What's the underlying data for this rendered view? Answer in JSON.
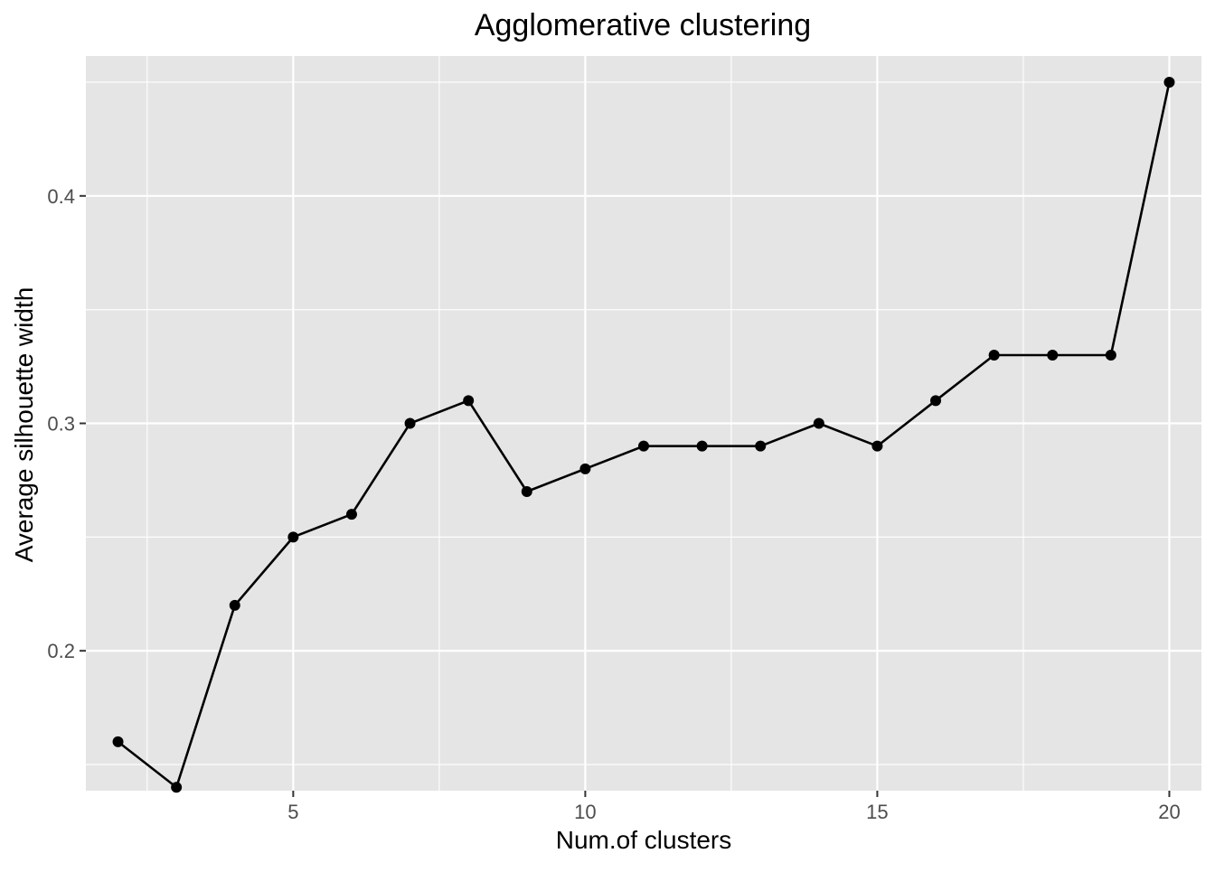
{
  "chart_data": {
    "type": "line",
    "title": "Agglomerative clustering",
    "xlabel": "Num.of clusters",
    "ylabel": "Average silhouette width",
    "xlim": [
      1.45,
      20.55
    ],
    "ylim": [
      0.1385,
      0.4615
    ],
    "x_ticks": [
      5,
      10,
      15,
      20
    ],
    "x_tick_labels": [
      "5",
      "10",
      "15",
      "20"
    ],
    "x_minor_ticks": [
      2.5,
      7.5,
      12.5,
      17.5
    ],
    "y_ticks": [
      0.2,
      0.3,
      0.4
    ],
    "y_tick_labels": [
      "0.2",
      "0.3",
      "0.4"
    ],
    "y_minor_ticks": [
      0.15,
      0.25,
      0.35,
      0.45
    ],
    "grid": true,
    "panel_background": "#e5e5e5",
    "series_color": "#000000",
    "x": [
      2,
      3,
      4,
      5,
      6,
      7,
      8,
      9,
      10,
      11,
      12,
      13,
      14,
      15,
      16,
      17,
      18,
      19,
      20
    ],
    "series": [
      {
        "values": [
          0.16,
          0.14,
          0.22,
          0.25,
          0.26,
          0.3,
          0.31,
          0.27,
          0.28,
          0.29,
          0.29,
          0.29,
          0.3,
          0.29,
          0.31,
          0.33,
          0.33,
          0.33,
          0.45
        ]
      }
    ]
  }
}
